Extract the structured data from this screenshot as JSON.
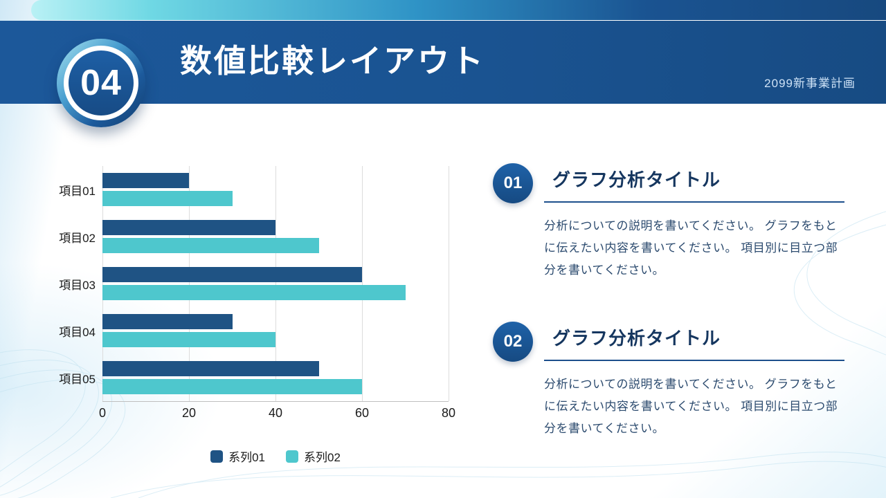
{
  "slide": {
    "badge_number": "04",
    "title": "数値比較レイアウト",
    "subtitle": "2099新事業計画"
  },
  "chart_data": {
    "type": "bar",
    "orientation": "horizontal",
    "title": "",
    "categories": [
      "項目01",
      "項目02",
      "項目03",
      "項目04",
      "項目05"
    ],
    "series": [
      {
        "name": "系列01",
        "color": "#1f5384",
        "values": [
          20,
          40,
          60,
          30,
          50
        ]
      },
      {
        "name": "系列02",
        "color": "#4ec7cd",
        "values": [
          30,
          50,
          70,
          40,
          60
        ]
      }
    ],
    "xlim": [
      0,
      80
    ],
    "xticks": [
      0,
      20,
      40,
      60,
      80
    ],
    "grid": true,
    "legend_position": "bottom"
  },
  "sections": [
    {
      "number": "01",
      "title": "グラフ分析タイトル",
      "body": "分析についての説明を書いてください。 グラフをもとに伝えたい内容を書いてください。 項目別に目立つ部分を書いてください。"
    },
    {
      "number": "02",
      "title": "グラフ分析タイトル",
      "body": "分析についての説明を書いてください。 グラフをもとに伝えたい内容を書いてください。 項目別に目立つ部分を書いてください。"
    }
  ],
  "colors": {
    "header_band": "#1a5391",
    "strip_light": "#b9f1f5",
    "series1": "#1f5384",
    "series2": "#4ec7cd",
    "section_title": "#15365f",
    "body_text": "#2b4a6e"
  }
}
